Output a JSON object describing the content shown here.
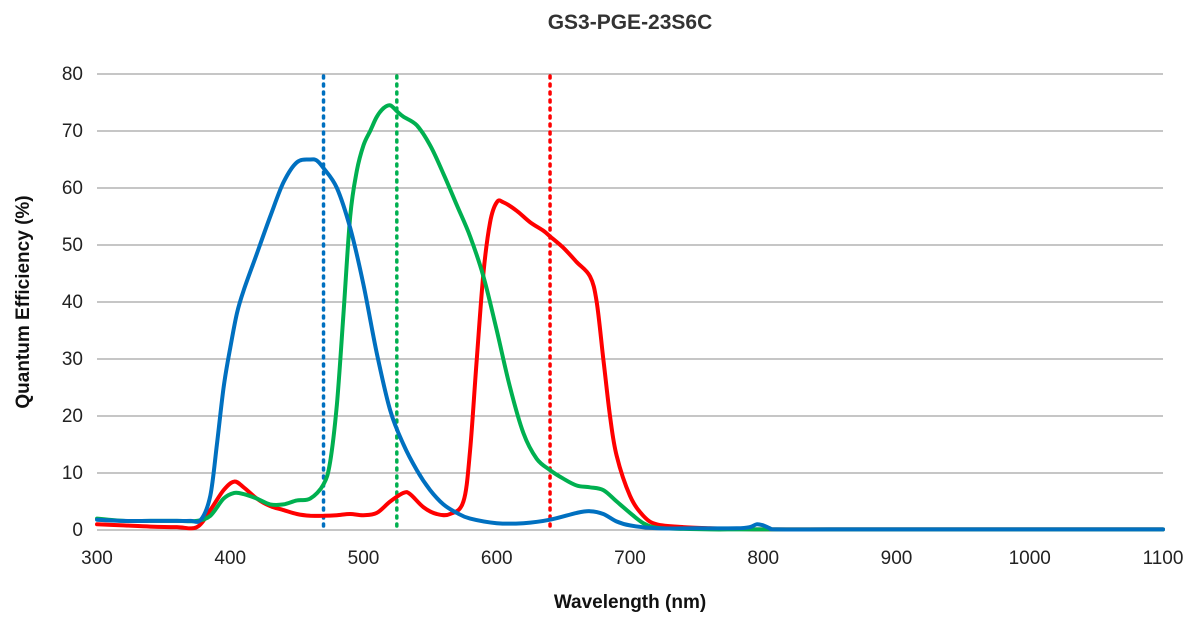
{
  "chart_data": {
    "type": "line",
    "title": "GS3-PGE-23S6C",
    "xlabel": "Wavelength (nm)",
    "ylabel": "Quantum Efficiency (%)",
    "xlim": [
      300,
      1100
    ],
    "ylim": [
      0,
      80
    ],
    "xticks": [
      300,
      400,
      500,
      600,
      700,
      800,
      900,
      1000,
      1100
    ],
    "yticks": [
      0,
      10,
      20,
      30,
      40,
      50,
      60,
      70,
      80
    ],
    "grid": "horizontal",
    "legend": "none",
    "series": [
      {
        "color": "#ff0000",
        "x": [
          300,
          320,
          340,
          360,
          375,
          385,
          395,
          403,
          410,
          420,
          430,
          440,
          450,
          460,
          470,
          480,
          490,
          500,
          510,
          520,
          530,
          535,
          545,
          555,
          565,
          575,
          580,
          585,
          590,
          595,
          600,
          605,
          615,
          625,
          635,
          640,
          650,
          660,
          670,
          675,
          680,
          685,
          690,
          700,
          710,
          720,
          740,
          760,
          780,
          800,
          850,
          900,
          1000,
          1100
        ],
        "y": [
          1.0,
          0.8,
          0.6,
          0.5,
          0.5,
          3.5,
          7.0,
          8.5,
          7.5,
          5.5,
          4.2,
          3.5,
          2.8,
          2.5,
          2.5,
          2.6,
          2.8,
          2.6,
          3.0,
          5.0,
          6.5,
          6.3,
          4.0,
          2.8,
          2.8,
          5.0,
          14.0,
          30.0,
          45.0,
          54.0,
          57.5,
          57.5,
          56.0,
          54.0,
          52.5,
          51.5,
          49.5,
          47.0,
          44.5,
          40.0,
          30.0,
          20.0,
          13.0,
          6.0,
          2.5,
          1.0,
          0.5,
          0.3,
          0.2,
          0.1,
          0.1,
          0.1,
          0.1,
          0.1
        ]
      },
      {
        "color": "#00b050",
        "x": [
          300,
          320,
          340,
          360,
          375,
          385,
          395,
          403,
          410,
          420,
          430,
          440,
          450,
          460,
          470,
          475,
          480,
          485,
          490,
          495,
          500,
          505,
          510,
          515,
          520,
          525,
          530,
          540,
          550,
          560,
          570,
          580,
          590,
          600,
          610,
          620,
          630,
          640,
          650,
          660,
          670,
          680,
          690,
          700,
          710,
          720,
          740,
          760,
          780,
          800,
          850,
          900,
          1000,
          1100
        ],
        "y": [
          2.0,
          1.6,
          1.6,
          1.6,
          1.6,
          2.5,
          5.5,
          6.5,
          6.3,
          5.5,
          4.5,
          4.5,
          5.2,
          5.5,
          8.0,
          12.0,
          22.0,
          38.0,
          55.0,
          63.0,
          67.5,
          70.0,
          72.5,
          74.0,
          74.5,
          73.5,
          72.5,
          71.0,
          67.5,
          62.5,
          57.0,
          51.5,
          44.5,
          35.0,
          25.0,
          17.0,
          12.5,
          10.5,
          9.0,
          7.8,
          7.5,
          7.0,
          5.0,
          3.0,
          1.2,
          0.4,
          0.2,
          0.1,
          0.1,
          0.1,
          0.1,
          0.1,
          0.1,
          0.1
        ]
      },
      {
        "color": "#0070c0",
        "x": [
          300,
          320,
          340,
          360,
          370,
          378,
          385,
          390,
          395,
          400,
          405,
          410,
          420,
          430,
          440,
          450,
          460,
          465,
          470,
          480,
          490,
          500,
          510,
          520,
          530,
          540,
          550,
          560,
          570,
          580,
          600,
          620,
          640,
          660,
          670,
          680,
          690,
          700,
          720,
          750,
          780,
          790,
          795,
          800,
          805,
          810,
          850,
          900,
          1000,
          1100
        ],
        "y": [
          1.8,
          1.6,
          1.6,
          1.6,
          1.6,
          1.8,
          6.0,
          15.0,
          25.0,
          32.0,
          38.0,
          42.0,
          48.5,
          55.0,
          61.0,
          64.5,
          65.0,
          64.8,
          63.5,
          60.0,
          53.0,
          43.0,
          31.0,
          21.0,
          15.0,
          10.5,
          7.0,
          4.5,
          3.0,
          2.0,
          1.2,
          1.2,
          1.8,
          3.0,
          3.3,
          2.8,
          1.5,
          0.8,
          0.3,
          0.3,
          0.3,
          0.5,
          1.0,
          0.8,
          0.3,
          0.1,
          0.1,
          0.1,
          0.1,
          0.1
        ]
      }
    ],
    "markers": [
      {
        "x": 470,
        "color": "#0070c0"
      },
      {
        "x": 525,
        "color": "#00b050"
      },
      {
        "x": 640,
        "color": "#ff0000"
      }
    ]
  }
}
